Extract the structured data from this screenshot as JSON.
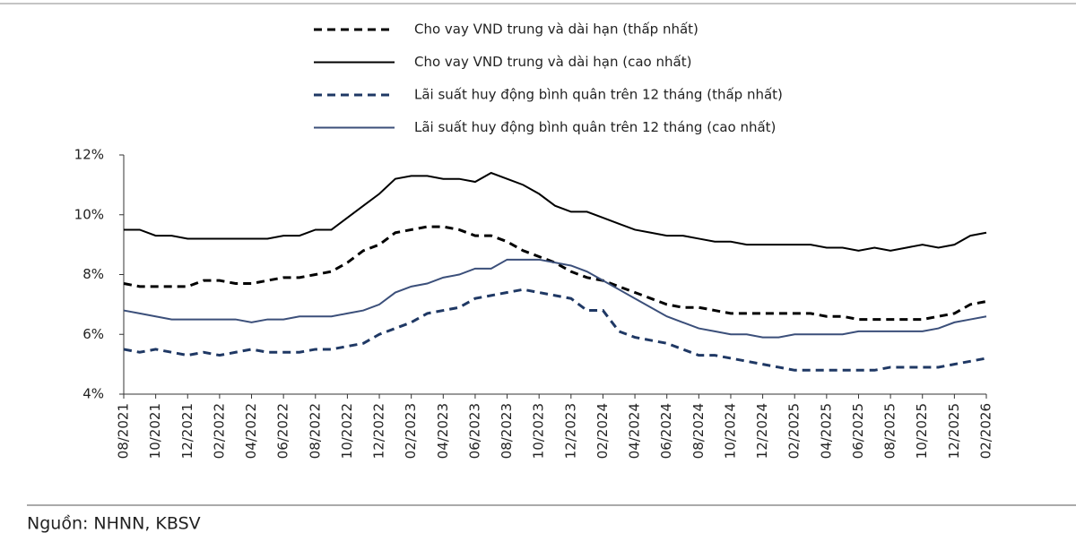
{
  "chart_data": {
    "type": "line",
    "categories": [
      "08/2021",
      null,
      "10/2021",
      null,
      "12/2021",
      null,
      "02/2022",
      null,
      "04/2022",
      null,
      "06/2022",
      null,
      "08/2022",
      null,
      "10/2022",
      null,
      "12/2022",
      null,
      "02/2023",
      null,
      "04/2023",
      null,
      "06/2023",
      null,
      "08/2023",
      null,
      "10/2023",
      null,
      "12/2023",
      null,
      "02/2024",
      null,
      "04/2024",
      null,
      "06/2024",
      null,
      "08/2024",
      null,
      "10/2024",
      null,
      "12/2024",
      null,
      "02/2025",
      null,
      "04/2025",
      null,
      "06/2025",
      null,
      "08/2025",
      null,
      "10/2025",
      null,
      "12/2025",
      null,
      "02/2026"
    ],
    "series": [
      {
        "name": "Cho vay VND trung và dài hạn (thấp nhất)",
        "color": "#000000",
        "dash": true,
        "values": [
          7.7,
          7.6,
          7.6,
          7.6,
          7.6,
          7.8,
          7.8,
          7.7,
          7.7,
          7.8,
          7.9,
          7.9,
          8.0,
          8.1,
          8.4,
          8.8,
          9.0,
          9.4,
          9.5,
          9.6,
          9.6,
          9.5,
          9.3,
          9.3,
          9.1,
          8.8,
          8.6,
          8.4,
          8.1,
          7.9,
          7.8,
          7.6,
          7.4,
          7.2,
          7.0,
          6.9,
          6.9,
          6.8,
          6.7,
          6.7,
          6.7,
          6.7,
          6.7,
          6.7,
          6.6,
          6.6,
          6.5,
          6.5,
          6.5,
          6.5,
          6.5,
          6.6,
          6.7,
          7.0,
          7.1
        ]
      },
      {
        "name": "Cho vay VND trung và dài hạn (cao nhất)",
        "color": "#000000",
        "dash": false,
        "values": [
          9.5,
          9.5,
          9.3,
          9.3,
          9.2,
          9.2,
          9.2,
          9.2,
          9.2,
          9.2,
          9.3,
          9.3,
          9.5,
          9.5,
          9.9,
          10.3,
          10.7,
          11.2,
          11.3,
          11.3,
          11.2,
          11.2,
          11.1,
          11.4,
          11.2,
          11.0,
          10.7,
          10.3,
          10.1,
          10.1,
          9.9,
          9.7,
          9.5,
          9.4,
          9.3,
          9.3,
          9.2,
          9.1,
          9.1,
          9.0,
          9.0,
          9.0,
          9.0,
          9.0,
          8.9,
          8.9,
          8.8,
          8.9,
          8.8,
          8.9,
          9.0,
          8.9,
          9.0,
          9.3,
          9.4
        ]
      },
      {
        "name": "Lãi suất huy động bình quân trên 12 tháng (thấp nhất)",
        "color": "#1f3864",
        "dash": true,
        "values": [
          5.5,
          5.4,
          5.5,
          5.4,
          5.3,
          5.4,
          5.3,
          5.4,
          5.5,
          5.4,
          5.4,
          5.4,
          5.5,
          5.5,
          5.6,
          5.7,
          6.0,
          6.2,
          6.4,
          6.7,
          6.8,
          6.9,
          7.2,
          7.3,
          7.4,
          7.5,
          7.4,
          7.3,
          7.2,
          6.8,
          6.8,
          6.1,
          5.9,
          5.8,
          5.7,
          5.5,
          5.3,
          5.3,
          5.2,
          5.1,
          5.0,
          4.9,
          4.8,
          4.8,
          4.8,
          4.8,
          4.8,
          4.8,
          4.9,
          4.9,
          4.9,
          4.9,
          5.0,
          5.1,
          5.2
        ]
      },
      {
        "name": "Lãi suất huy động bình quân trên 12 tháng (cao nhất)",
        "color": "#3b4f7a",
        "dash": false,
        "values": [
          6.8,
          6.7,
          6.6,
          6.5,
          6.5,
          6.5,
          6.5,
          6.5,
          6.4,
          6.5,
          6.5,
          6.6,
          6.6,
          6.6,
          6.7,
          6.8,
          7.0,
          7.4,
          7.6,
          7.7,
          7.9,
          8.0,
          8.2,
          8.2,
          8.5,
          8.5,
          8.5,
          8.4,
          8.3,
          8.1,
          7.8,
          7.5,
          7.2,
          6.9,
          6.6,
          6.4,
          6.2,
          6.1,
          6.0,
          6.0,
          5.9,
          5.9,
          6.0,
          6.0,
          6.0,
          6.0,
          6.1,
          6.1,
          6.1,
          6.1,
          6.1,
          6.2,
          6.4,
          6.5,
          6.6
        ]
      }
    ],
    "ylim": [
      4,
      12
    ],
    "yticks": [
      {
        "value": 4,
        "label": "4%"
      },
      {
        "value": 6,
        "label": "6%"
      },
      {
        "value": 8,
        "label": "8%"
      },
      {
        "value": 10,
        "label": "10%"
      },
      {
        "value": 12,
        "label": "12%"
      }
    ],
    "source": "Nguồn: NHNN, KBSV"
  }
}
